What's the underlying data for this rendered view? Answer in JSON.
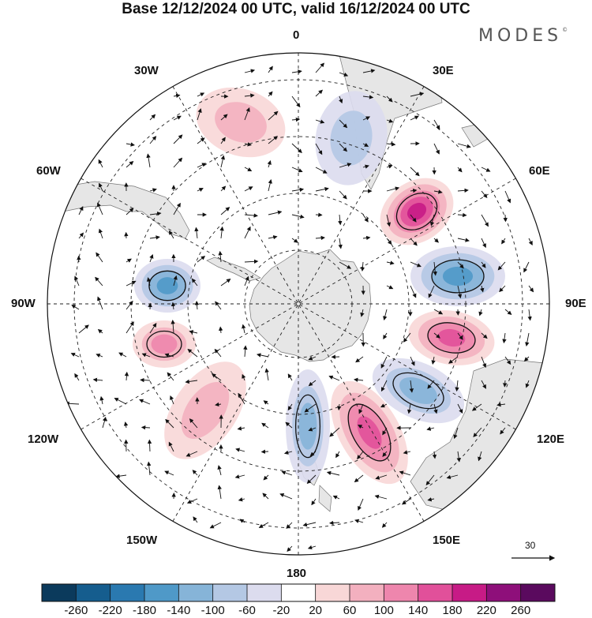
{
  "title": "Base 12/12/2024 00 UTC, valid 16/12/2024 00 UTC",
  "brand": "MODES",
  "brand_mark": "©",
  "longitude_labels": {
    "top": "0",
    "bottom": "180",
    "left": "90W",
    "right": "90E",
    "w30": "30W",
    "e30": "30E",
    "w60": "60W",
    "e60": "60E",
    "w120": "120W",
    "e120": "120E",
    "w150": "150W",
    "e150": "150E"
  },
  "vector_scale_label": "30",
  "colorbar": {
    "labels": [
      "-260",
      "-220",
      "-180",
      "-140",
      "-100",
      "-60",
      "-20",
      "20",
      "60",
      "100",
      "140",
      "180",
      "220",
      "260"
    ],
    "colors": [
      "#0b3a5c",
      "#155d8e",
      "#2a79b0",
      "#4f99c8",
      "#86b4d8",
      "#b4c8e4",
      "#dcdcee",
      "#ffffff",
      "#f8d7d7",
      "#f3b0bf",
      "#ee86ad",
      "#e1509a",
      "#c71b86",
      "#8e0f7a",
      "#5a0a5e"
    ]
  },
  "anomalies": [
    {
      "sign": "+",
      "level": 4
    },
    {
      "sign": "-",
      "level": 3
    },
    {
      "sign": "+",
      "level": 3
    },
    {
      "sign": "-",
      "level": 2
    },
    {
      "sign": "+",
      "level": 3
    },
    {
      "sign": "-",
      "level": 2
    },
    {
      "sign": "+",
      "level": 2
    },
    {
      "sign": "-",
      "level": 3
    },
    {
      "sign": "+",
      "level": 1
    },
    {
      "sign": "-",
      "level": 1
    },
    {
      "sign": "+",
      "level": 1
    }
  ]
}
